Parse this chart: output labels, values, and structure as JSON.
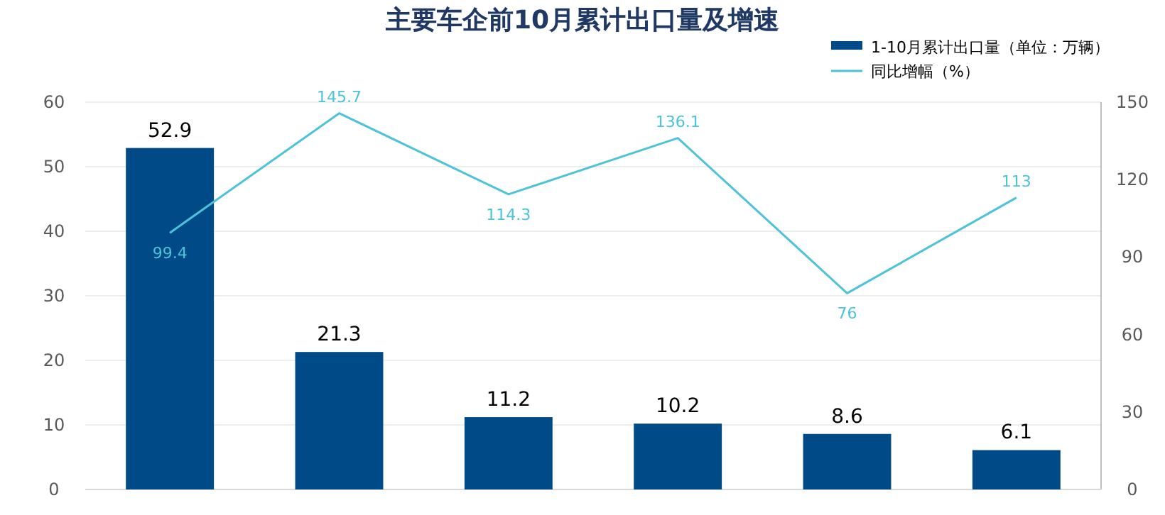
{
  "chart_data": {
    "type": "bar",
    "title": "主要车企前10月累计出口量及增速",
    "categories": [
      null,
      null,
      null,
      null,
      null,
      null
    ],
    "series": [
      {
        "name": "1-10月累计出口量（单位：万辆）",
        "color": "#004b87",
        "values": [
          52.9,
          21.3,
          11.2,
          10.2,
          8.6,
          6.1
        ]
      },
      {
        "name": "同比增幅（%）",
        "type": "line",
        "axis": "y2",
        "color": "#4cc3d9",
        "values": [
          99.4,
          145.7,
          114.3,
          136.1,
          76,
          113
        ]
      }
    ],
    "ylim": [
      0,
      60
    ],
    "yticks": [
      0,
      10,
      20,
      30,
      40,
      50,
      60
    ],
    "y2lim": [
      0,
      150
    ],
    "y2ticks": [
      0,
      30,
      60,
      90,
      120,
      150
    ],
    "data_labels": true,
    "grid": "y",
    "legend": "top right",
    "marker": "none",
    "line_style": "solid"
  }
}
